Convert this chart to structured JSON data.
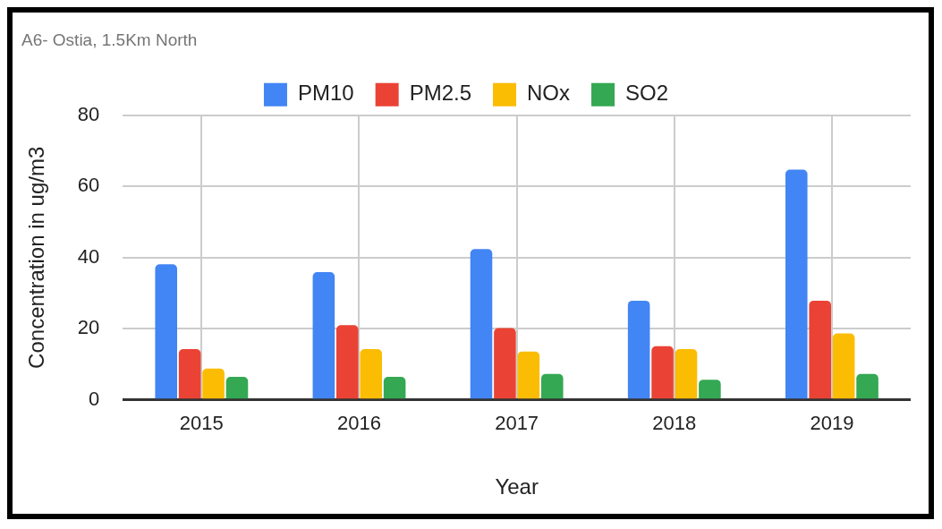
{
  "chart_data": {
    "type": "bar",
    "title": "A6- Ostia, 1.5Km North",
    "xlabel": "Year",
    "ylabel": "Concentration in ug/m3",
    "categories": [
      "2015",
      "2016",
      "2017",
      "2018",
      "2019"
    ],
    "series": [
      {
        "name": "PM10",
        "color": "#4285f4",
        "values": [
          38.1,
          35.9,
          42.4,
          27.9,
          64.7
        ]
      },
      {
        "name": "PM2.5",
        "color": "#ea4335",
        "values": [
          14.3,
          21.0,
          20.2,
          15.1,
          27.9
        ]
      },
      {
        "name": "NOx",
        "color": "#fbbc04",
        "values": [
          8.8,
          14.3,
          13.6,
          14.3,
          18.7
        ]
      },
      {
        "name": "SO2",
        "color": "#34a853",
        "values": [
          6.5,
          6.5,
          7.3,
          5.7,
          7.3
        ]
      }
    ],
    "ylim": [
      0,
      80
    ],
    "yticks": [
      0,
      20,
      40,
      60,
      80
    ],
    "grid": true,
    "legend": "top"
  }
}
